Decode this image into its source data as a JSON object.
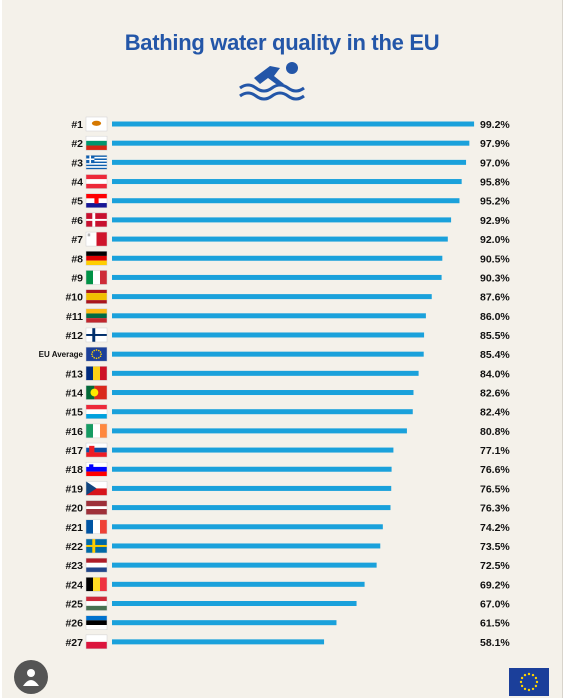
{
  "page": {
    "title": "Bathing water quality in the EU",
    "icons": {
      "swimmer": "swimmer-icon",
      "avatar": "user-avatar-icon",
      "logo": "eu-flag-icon"
    }
  },
  "colors": {
    "title": "#2356a8",
    "bar": "#1aa1db",
    "background": "#f4f1ea"
  },
  "chart_data": {
    "type": "bar",
    "orientation": "horizontal",
    "title": "Bathing water quality in the EU",
    "xlim": [
      0,
      100
    ],
    "grid": false,
    "legend": "none",
    "categories": [
      "#1",
      "#2",
      "#3",
      "#4",
      "#5",
      "#6",
      "#7",
      "#8",
      "#9",
      "#10",
      "#11",
      "#12",
      "EU Average",
      "#13",
      "#14",
      "#15",
      "#16",
      "#17",
      "#18",
      "#19",
      "#20",
      "#21",
      "#22",
      "#23",
      "#24",
      "#25",
      "#26",
      "#27"
    ],
    "values": [
      99.2,
      97.9,
      97.0,
      95.8,
      95.2,
      92.9,
      92.0,
      90.5,
      90.3,
      87.6,
      86.0,
      85.5,
      85.4,
      84.0,
      82.6,
      82.4,
      80.8,
      77.1,
      76.6,
      76.5,
      76.3,
      74.2,
      73.5,
      72.5,
      69.2,
      67.0,
      61.5,
      58.1
    ],
    "value_labels": [
      "99.2%",
      "97.9%",
      "97.0%",
      "95.8%",
      "95.2%",
      "92.9%",
      "92.0%",
      "90.5%",
      "90.3%",
      "87.6%",
      "86.0%",
      "85.5%",
      "85.4%",
      "84.0%",
      "82.6%",
      "82.4%",
      "80.8%",
      "77.1%",
      "76.6%",
      "76.5%",
      "76.3%",
      "74.2%",
      "73.5%",
      "72.5%",
      "69.2%",
      "67.0%",
      "61.5%",
      "58.1%"
    ],
    "flags": [
      "cyprus",
      "bulgaria",
      "greece",
      "austria",
      "croatia",
      "denmark",
      "malta",
      "germany",
      "italy",
      "spain",
      "lithuania",
      "finland",
      "eu",
      "romania",
      "portugal",
      "luxembourg",
      "ireland",
      "slovakia",
      "slovenia",
      "czechia",
      "latvia",
      "france",
      "sweden",
      "netherlands",
      "belgium",
      "hungary",
      "estonia",
      "poland"
    ]
  }
}
